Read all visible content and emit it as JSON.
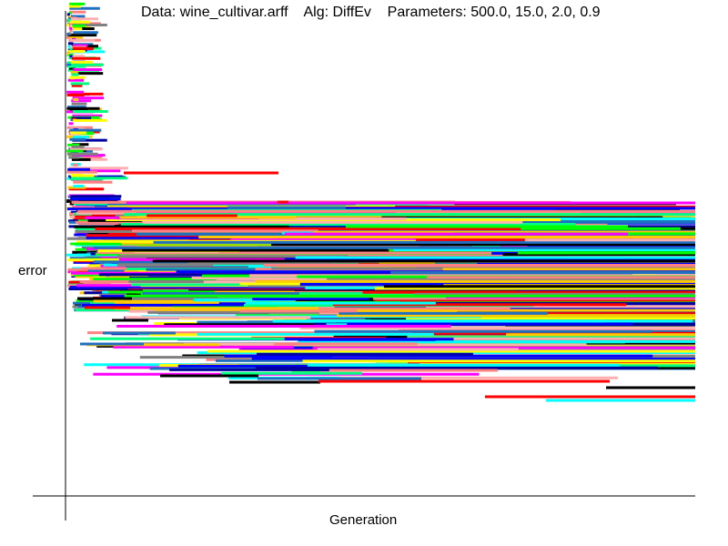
{
  "chart_data": {
    "type": "line",
    "title": "Data: wine_cultivar.arff    Alg: DiffEv    Parameters: 500.0, 15.0, 2.0, 0.9",
    "xlabel": "Generation",
    "ylabel": "error",
    "grid": false,
    "legend": "none",
    "x_ticks": "none",
    "y_ticks": "none",
    "palette": [
      "#ff0000",
      "#00ff00",
      "#0000ff",
      "#00ffff",
      "#ff00ff",
      "#ffff00",
      "#ffafaf",
      "#ffc800",
      "#808080",
      "#000000",
      "#0000a0",
      "#00ff80",
      "#2070c0",
      "#ff8080"
    ]
  }
}
